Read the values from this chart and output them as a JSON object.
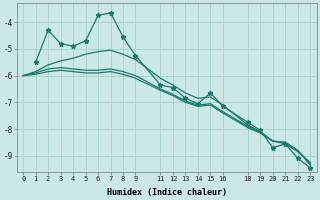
{
  "xlabel": "Humidex (Indice chaleur)",
  "bg_color": "#cce8e6",
  "grid_color": "#aad4d0",
  "line_color": "#1a7a6e",
  "xlim": [
    -0.5,
    23.5
  ],
  "ylim": [
    -9.6,
    -3.3
  ],
  "xticks": [
    0,
    1,
    2,
    3,
    4,
    5,
    6,
    7,
    8,
    9,
    11,
    12,
    13,
    14,
    15,
    16,
    18,
    19,
    20,
    21,
    22,
    23
  ],
  "yticks": [
    -9,
    -8,
    -7,
    -6,
    -5,
    -4
  ],
  "series": [
    {
      "x": [
        1,
        2,
        3,
        4,
        5,
        6,
        7,
        8,
        9,
        11,
        12,
        13,
        14,
        15,
        16,
        18,
        19,
        20,
        21,
        22,
        23
      ],
      "y": [
        -5.5,
        -4.3,
        -4.8,
        -4.9,
        -4.7,
        -3.75,
        -3.65,
        -4.55,
        -5.25,
        -6.35,
        -6.45,
        -6.85,
        -7.05,
        -6.65,
        -7.15,
        -7.75,
        -8.05,
        -8.7,
        -8.55,
        -9.1,
        -9.45
      ],
      "marker": true
    },
    {
      "x": [
        0,
        1,
        2,
        3,
        4,
        5,
        6,
        7,
        8,
        9,
        11,
        12,
        13,
        14,
        15,
        16,
        18,
        19,
        20,
        21,
        22,
        23
      ],
      "y": [
        -6.0,
        -5.85,
        -5.6,
        -5.45,
        -5.35,
        -5.2,
        -5.1,
        -5.05,
        -5.2,
        -5.4,
        -6.1,
        -6.35,
        -6.65,
        -6.85,
        -6.8,
        -7.1,
        -7.85,
        -8.1,
        -8.45,
        -8.55,
        -8.85,
        -9.25
      ],
      "marker": false
    },
    {
      "x": [
        0,
        1,
        2,
        3,
        4,
        5,
        6,
        7,
        8,
        9,
        11,
        12,
        13,
        14,
        15,
        16,
        18,
        19,
        20,
        21,
        22,
        23
      ],
      "y": [
        -6.0,
        -5.9,
        -5.75,
        -5.7,
        -5.75,
        -5.8,
        -5.8,
        -5.75,
        -5.85,
        -6.0,
        -6.5,
        -6.7,
        -6.95,
        -7.1,
        -7.05,
        -7.35,
        -7.9,
        -8.1,
        -8.45,
        -8.5,
        -8.8,
        -9.3
      ],
      "marker": false
    },
    {
      "x": [
        0,
        1,
        2,
        3,
        4,
        5,
        6,
        7,
        8,
        9,
        11,
        12,
        13,
        14,
        15,
        16,
        18,
        19,
        20,
        21,
        22,
        23
      ],
      "y": [
        -6.0,
        -5.95,
        -5.85,
        -5.8,
        -5.85,
        -5.9,
        -5.9,
        -5.85,
        -5.95,
        -6.1,
        -6.55,
        -6.75,
        -7.0,
        -7.15,
        -7.1,
        -7.4,
        -7.95,
        -8.15,
        -8.45,
        -8.5,
        -8.8,
        -9.35
      ],
      "marker": false
    }
  ]
}
